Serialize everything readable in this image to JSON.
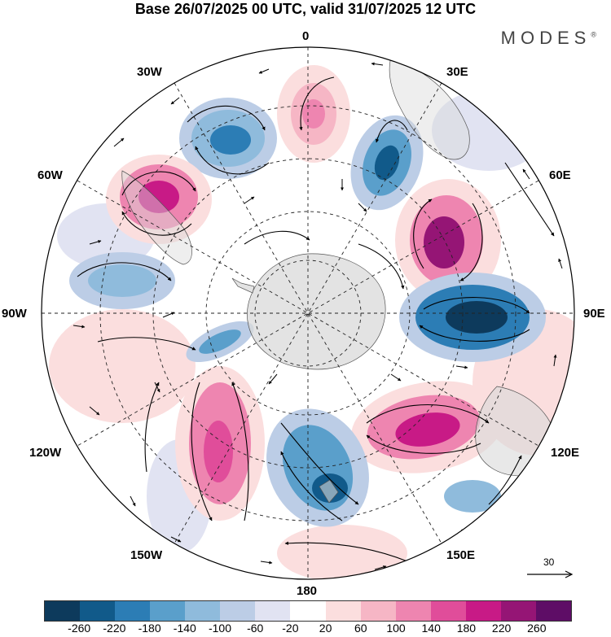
{
  "title": "Base 26/07/2025 00 UTC, valid 31/07/2025 12 UTC",
  "brand": "MODES",
  "brand_mark": "®",
  "longitude_labels": {
    "top": "0",
    "bottom": "180",
    "left": "90W",
    "right": "90E",
    "upper_left_1": "30W",
    "upper_left_2": "60W",
    "upper_right_1": "30E",
    "upper_right_2": "60E",
    "lower_left_1": "120W",
    "lower_left_2": "150W",
    "lower_right_1": "120E",
    "lower_right_2": "150E"
  },
  "reference_vector": "30",
  "colorbar": {
    "ticks": [
      "-260",
      "-220",
      "-180",
      "-140",
      "-100",
      "-60",
      "-20",
      "20",
      "60",
      "100",
      "140",
      "180",
      "220",
      "260"
    ],
    "colors": [
      "#0d3a5c",
      "#115a8a",
      "#2c7db5",
      "#5a9fcb",
      "#8fbbdc",
      "#bccde6",
      "#e1e3f2",
      "#ffffff",
      "#fbdede",
      "#f6b6c5",
      "#ee85b0",
      "#e04d9a",
      "#c81a86",
      "#951575",
      "#5e0d66"
    ]
  },
  "anomaly_centers": [
    {
      "sign": "neg",
      "label": "low-30W"
    },
    {
      "sign": "pos",
      "label": "high-50W"
    },
    {
      "sign": "neg",
      "label": "low-80W"
    },
    {
      "sign": "pos",
      "label": "high-0"
    },
    {
      "sign": "neg",
      "label": "low-25E"
    },
    {
      "sign": "pos",
      "label": "high-60E"
    },
    {
      "sign": "neg",
      "label": "low-90E"
    },
    {
      "sign": "pos",
      "label": "high-115E"
    },
    {
      "sign": "neg",
      "label": "low-165E"
    },
    {
      "sign": "pos",
      "label": "high-145W"
    },
    {
      "sign": "neg",
      "label": "low-100W"
    }
  ]
}
